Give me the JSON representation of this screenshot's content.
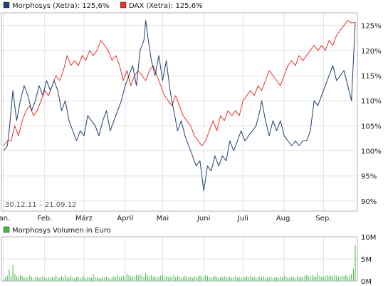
{
  "colors": {
    "morphosys": "#1f3f6e",
    "dax": "#e8332f",
    "volume": "#3cb83c",
    "grid": "#e0e0e0",
    "frame": "#b3b3b3",
    "background": "#ffffff"
  },
  "legend": {
    "morphosys": "Morphosys (Xetra): 125,6%",
    "dax": "DAX (Xetra): 125,6%",
    "volume": "Morphosys Volumen in Euro"
  },
  "date_range": "30.12.11 – 21.09.12",
  "chart_data": [
    {
      "type": "line",
      "x_label_positions_note": "x values are trading-day index 0..188 (30.12.11 to 21.09.12)",
      "x_ticks": [
        {
          "x": 0,
          "label": "Jan."
        },
        {
          "x": 22,
          "label": "Feb."
        },
        {
          "x": 43,
          "label": "März"
        },
        {
          "x": 65,
          "label": "April"
        },
        {
          "x": 85,
          "label": "Mai"
        },
        {
          "x": 107,
          "label": "Juni"
        },
        {
          "x": 128,
          "label": "Juli"
        },
        {
          "x": 150,
          "label": "Aug."
        },
        {
          "x": 171,
          "label": "Sep."
        }
      ],
      "ylim": [
        88,
        127.5
      ],
      "y_ticks": [
        {
          "v": 90,
          "label": "90%"
        },
        {
          "v": 95,
          "label": "95%"
        },
        {
          "v": 100,
          "label": "100%"
        },
        {
          "v": 105,
          "label": "105%"
        },
        {
          "v": 110,
          "label": "110%"
        },
        {
          "v": 115,
          "label": "115%"
        },
        {
          "v": 120,
          "label": "120%"
        },
        {
          "v": 125,
          "label": "125%"
        }
      ],
      "grid": true,
      "series": [
        {
          "name": "Morphosys (Xetra): 125,6%",
          "color": "#1f3f6e",
          "points": [
            [
              0,
              100
            ],
            [
              2,
              101
            ],
            [
              3,
              104
            ],
            [
              5,
              112
            ],
            [
              7,
              106
            ],
            [
              9,
              110
            ],
            [
              11,
              113
            ],
            [
              13,
              111
            ],
            [
              15,
              108
            ],
            [
              17,
              110
            ],
            [
              19,
              113
            ],
            [
              21,
              111
            ],
            [
              23,
              114
            ],
            [
              25,
              112
            ],
            [
              27,
              114
            ],
            [
              29,
              112
            ],
            [
              31,
              108
            ],
            [
              33,
              110
            ],
            [
              35,
              106
            ],
            [
              37,
              104
            ],
            [
              39,
              102
            ],
            [
              41,
              104
            ],
            [
              43,
              103
            ],
            [
              45,
              107
            ],
            [
              47,
              106
            ],
            [
              49,
              105
            ],
            [
              51,
              103
            ],
            [
              53,
              106
            ],
            [
              55,
              108
            ],
            [
              57,
              104
            ],
            [
              59,
              106
            ],
            [
              61,
              108
            ],
            [
              63,
              110
            ],
            [
              65,
              113
            ],
            [
              67,
              115
            ],
            [
              69,
              117
            ],
            [
              71,
              113
            ],
            [
              73,
              120
            ],
            [
              75,
              122
            ],
            [
              76,
              126
            ],
            [
              77,
              123
            ],
            [
              79,
              118
            ],
            [
              81,
              115
            ],
            [
              83,
              119
            ],
            [
              85,
              114
            ],
            [
              87,
              118
            ],
            [
              89,
              112
            ],
            [
              91,
              108
            ],
            [
              93,
              104
            ],
            [
              95,
              106
            ],
            [
              97,
              103
            ],
            [
              99,
              101
            ],
            [
              101,
              99
            ],
            [
              103,
              97
            ],
            [
              105,
              98
            ],
            [
              107,
              92
            ],
            [
              109,
              97
            ],
            [
              111,
              96
            ],
            [
              113,
              99
            ],
            [
              115,
              97
            ],
            [
              117,
              99
            ],
            [
              119,
              98
            ],
            [
              121,
              102
            ],
            [
              123,
              100
            ],
            [
              125,
              102
            ],
            [
              127,
              104
            ],
            [
              129,
              102
            ],
            [
              131,
              103
            ],
            [
              133,
              104
            ],
            [
              135,
              105
            ],
            [
              137,
              108
            ],
            [
              138,
              110
            ],
            [
              140,
              106
            ],
            [
              142,
              103
            ],
            [
              144,
              106
            ],
            [
              146,
              104
            ],
            [
              148,
              106
            ],
            [
              150,
              103
            ],
            [
              152,
              102
            ],
            [
              154,
              101
            ],
            [
              156,
              102
            ],
            [
              158,
              101
            ],
            [
              160,
              102
            ],
            [
              162,
              102
            ],
            [
              164,
              104
            ],
            [
              166,
              110
            ],
            [
              168,
              109
            ],
            [
              170,
              111
            ],
            [
              172,
              113
            ],
            [
              174,
              115
            ],
            [
              176,
              117
            ],
            [
              178,
              114
            ],
            [
              180,
              115
            ],
            [
              182,
              116
            ],
            [
              184,
              113
            ],
            [
              186,
              110
            ],
            [
              187,
              118
            ],
            [
              188,
              125.6
            ]
          ]
        },
        {
          "name": "DAX (Xetra): 125,6%",
          "color": "#e8332f",
          "points": [
            [
              0,
              101
            ],
            [
              2,
              102
            ],
            [
              4,
              102
            ],
            [
              6,
              105
            ],
            [
              8,
              103
            ],
            [
              10,
              106
            ],
            [
              12,
              108
            ],
            [
              14,
              109
            ],
            [
              16,
              107
            ],
            [
              18,
              108
            ],
            [
              20,
              110
            ],
            [
              22,
              112
            ],
            [
              24,
              111
            ],
            [
              26,
              113
            ],
            [
              28,
              115
            ],
            [
              30,
              114
            ],
            [
              32,
              116
            ],
            [
              34,
              119
            ],
            [
              36,
              117
            ],
            [
              38,
              118
            ],
            [
              40,
              117
            ],
            [
              42,
              119
            ],
            [
              44,
              118
            ],
            [
              46,
              120
            ],
            [
              48,
              119
            ],
            [
              50,
              120
            ],
            [
              52,
              122
            ],
            [
              54,
              121
            ],
            [
              56,
              120
            ],
            [
              58,
              118
            ],
            [
              60,
              119
            ],
            [
              62,
              117
            ],
            [
              64,
              114
            ],
            [
              66,
              116
            ],
            [
              68,
              113
            ],
            [
              70,
              115
            ],
            [
              72,
              116
            ],
            [
              74,
              115
            ],
            [
              76,
              114
            ],
            [
              78,
              116
            ],
            [
              80,
              117
            ],
            [
              82,
              115
            ],
            [
              84,
              113
            ],
            [
              86,
              111
            ],
            [
              88,
              110
            ],
            [
              90,
              109
            ],
            [
              92,
              111
            ],
            [
              94,
              109
            ],
            [
              96,
              107
            ],
            [
              98,
              106
            ],
            [
              100,
              105
            ],
            [
              102,
              103
            ],
            [
              104,
              102
            ],
            [
              106,
              101
            ],
            [
              108,
              102
            ],
            [
              110,
              104
            ],
            [
              112,
              106
            ],
            [
              114,
              104
            ],
            [
              116,
              107
            ],
            [
              118,
              106
            ],
            [
              120,
              108
            ],
            [
              122,
              107
            ],
            [
              124,
              108
            ],
            [
              126,
              107
            ],
            [
              128,
              110
            ],
            [
              130,
              111
            ],
            [
              132,
              112
            ],
            [
              134,
              111
            ],
            [
              136,
              113
            ],
            [
              138,
              112
            ],
            [
              140,
              114
            ],
            [
              142,
              116
            ],
            [
              144,
              115
            ],
            [
              146,
              114
            ],
            [
              148,
              113
            ],
            [
              150,
              115
            ],
            [
              152,
              117
            ],
            [
              154,
              118
            ],
            [
              156,
              117
            ],
            [
              158,
              119
            ],
            [
              160,
              118
            ],
            [
              162,
              119
            ],
            [
              164,
              120
            ],
            [
              166,
              121
            ],
            [
              168,
              120
            ],
            [
              170,
              121
            ],
            [
              172,
              120
            ],
            [
              174,
              122
            ],
            [
              176,
              121
            ],
            [
              178,
              123
            ],
            [
              180,
              124
            ],
            [
              182,
              125
            ],
            [
              184,
              126
            ],
            [
              186,
              125.5
            ],
            [
              188,
              125.6
            ]
          ]
        }
      ]
    },
    {
      "type": "bar",
      "title": "Morphosys Volumen in Euro",
      "ylim": [
        0,
        10
      ],
      "y_unit": "M",
      "y_ticks": [
        {
          "v": 0,
          "label": "0M"
        },
        {
          "v": 5,
          "label": "5M"
        },
        {
          "v": 10,
          "label": "10M"
        }
      ],
      "series": [
        {
          "name": "Morphosys Volumen in Euro",
          "color": "#3cb83c",
          "values": [
            0.5,
            0.8,
            1.2,
            2.6,
            1.2,
            3.6,
            1.6,
            1.0,
            0.9,
            1.3,
            1.1,
            0.7,
            1.0,
            0.8,
            1.2,
            0.9,
            0.6,
            0.8,
            1.0,
            0.7,
            0.9,
            1.1,
            0.8,
            0.6,
            0.9,
            0.7,
            1.0,
            0.8,
            1.3,
            0.9,
            0.7,
            1.1,
            0.8,
            1.4,
            0.9,
            0.7,
            1.2,
            0.8,
            0.6,
            0.9,
            1.0,
            0.7,
            0.8,
            1.1,
            0.6,
            0.9,
            0.8,
            0.7,
            1.5,
            0.9,
            0.8,
            0.6,
            0.7,
            0.9,
            0.8,
            1.0,
            0.7,
            0.6,
            0.9,
            1.1,
            0.8,
            1.3,
            1.0,
            0.9,
            1.2,
            0.8,
            1.6,
            1.3,
            1.0,
            1.1,
            0.9,
            1.4,
            1.2,
            1.5,
            1.1,
            0.9,
            1.8,
            1.2,
            1.0,
            1.3,
            0.9,
            1.1,
            0.8,
            1.0,
            1.2,
            1.4,
            0.9,
            1.1,
            0.8,
            1.0,
            0.9,
            1.3,
            0.8,
            1.1,
            1.0,
            0.7,
            0.9,
            1.2,
            0.8,
            1.0,
            0.9,
            0.7,
            1.1,
            0.8,
            0.9,
            1.3,
            1.0,
            0.8,
            1.4,
            1.1,
            0.9,
            0.8,
            1.0,
            1.2,
            0.9,
            0.7,
            1.0,
            0.8,
            1.1,
            0.9,
            0.8,
            1.0,
            0.7,
            0.9,
            1.2,
            0.8,
            0.9,
            0.7,
            1.0,
            0.8,
            1.1,
            0.9,
            1.3,
            0.8,
            1.0,
            0.7,
            0.9,
            1.1,
            0.8,
            1.0,
            0.7,
            0.9,
            0.8,
            1.0,
            0.6,
            0.8,
            0.9,
            0.7,
            1.0,
            0.8,
            1.2,
            0.9,
            0.7,
            0.8,
            1.0,
            0.9,
            0.7,
            1.1,
            0.8,
            1.0,
            0.9,
            1.2,
            1.4,
            1.0,
            1.1,
            1.3,
            0.9,
            1.0,
            1.8,
            1.2,
            1.0,
            0.9,
            1.1,
            1.3,
            1.0,
            1.2,
            1.0,
            1.4,
            1.1,
            0.9,
            1.0,
            1.2,
            1.1,
            1.4,
            1.0,
            1.3,
            1.6,
            2.8,
            8.2
          ]
        }
      ]
    }
  ]
}
